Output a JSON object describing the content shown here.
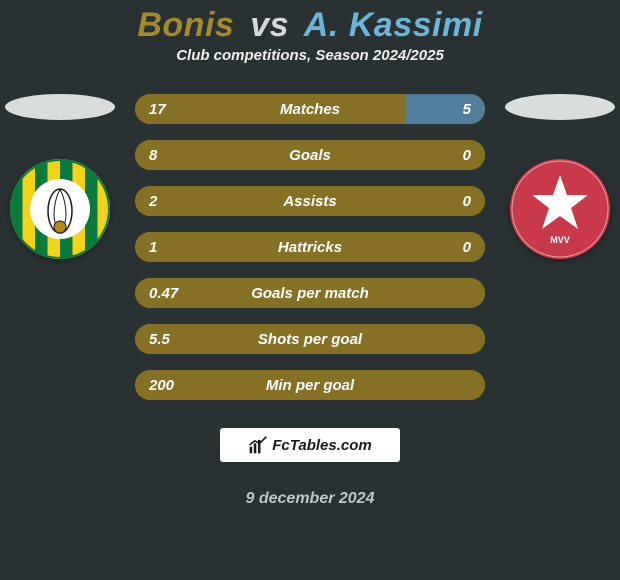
{
  "title": {
    "left_name": "Bonis",
    "vs": "vs",
    "right_name": "A. Kassimi",
    "left_color": "#a38a2d",
    "right_color": "#6cb5d9",
    "vs_color": "#d4d8d9",
    "fontsize": 34
  },
  "subtitle": {
    "text": "Club competitions, Season 2024/2025",
    "color": "#eef0f0",
    "fontsize": 15
  },
  "shadow_ellipse_color": "#d9dddc",
  "badges": {
    "left": {
      "bg": "#ffffff",
      "stripes": [
        "#0a7a3c",
        "#f3d21a"
      ],
      "center_bg": "#ffffff"
    },
    "right": {
      "bg": "#c83a4a",
      "star_color": "#ffffff"
    }
  },
  "bars": {
    "track_color": "#a38a2d",
    "left_fill_color": "#867026",
    "right_fill_color": "#517e9a",
    "value_fontsize": 15,
    "label_fontsize": 15,
    "rows": [
      {
        "label": "Matches",
        "left_val": "17",
        "right_val": "5",
        "left_pct": 77,
        "right_pct": 23
      },
      {
        "label": "Goals",
        "left_val": "8",
        "right_val": "0",
        "left_pct": 100,
        "right_pct": 0
      },
      {
        "label": "Assists",
        "left_val": "2",
        "right_val": "0",
        "left_pct": 100,
        "right_pct": 0
      },
      {
        "label": "Hattricks",
        "left_val": "1",
        "right_val": "0",
        "left_pct": 100,
        "right_pct": 0
      },
      {
        "label": "Goals per match",
        "left_val": "0.47",
        "right_val": "",
        "left_pct": 100,
        "right_pct": 0
      },
      {
        "label": "Shots per goal",
        "left_val": "5.5",
        "right_val": "",
        "left_pct": 100,
        "right_pct": 0
      },
      {
        "label": "Min per goal",
        "left_val": "200",
        "right_val": "",
        "left_pct": 100,
        "right_pct": 0
      }
    ]
  },
  "branding": {
    "text": "FcTables.com",
    "bg": "#ffffff",
    "color": "#1b1b1b",
    "fontsize": 15
  },
  "date": {
    "text": "9 december 2024",
    "color": "#bfc5c6",
    "fontsize": 16
  },
  "background_color": "#293133"
}
